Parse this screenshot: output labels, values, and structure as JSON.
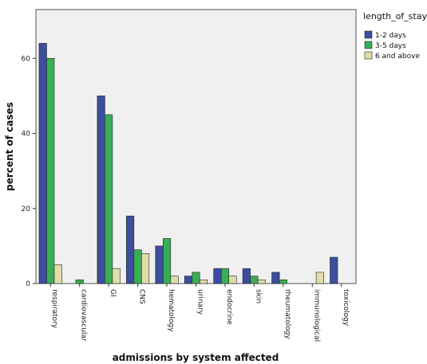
{
  "chart_data": {
    "type": "bar",
    "xlabel": "admissions by system affected",
    "ylabel": "percent of cases",
    "ylim": [
      0,
      73
    ],
    "yticks": [
      0,
      20,
      40,
      60
    ],
    "grid": false,
    "legend_position": "top-right",
    "legend_title": "length_of_stay",
    "categories": [
      "respiratory",
      "cardiovascular",
      "GI",
      "CNS",
      "hematology",
      "urinary",
      "endocrine",
      "skin",
      "rheumatology",
      "immunological",
      "toxicology"
    ],
    "series": [
      {
        "name": "1-2 days",
        "color": "#3b4f9e",
        "values": [
          64,
          0,
          50,
          18,
          10,
          2,
          4,
          4,
          3,
          0,
          7
        ]
      },
      {
        "name": "3-5 days",
        "color": "#3aae55",
        "values": [
          60,
          1,
          45,
          9,
          12,
          3,
          4,
          2,
          1,
          0,
          0
        ]
      },
      {
        "name": "6 and above",
        "color": "#e1dca8",
        "values": [
          5,
          0,
          4,
          8,
          2,
          1,
          2,
          1,
          0,
          3,
          0
        ]
      }
    ]
  }
}
